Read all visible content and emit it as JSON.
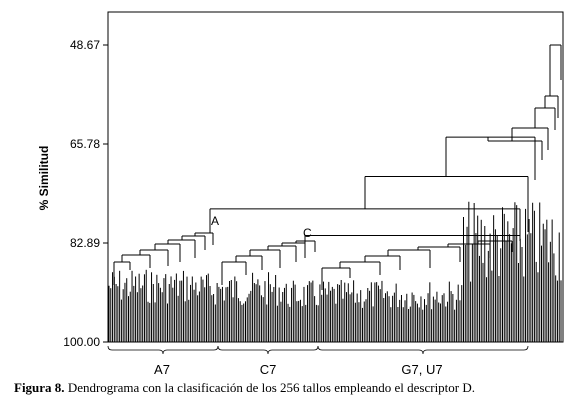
{
  "chart_data": {
    "type": "dendrogram",
    "ylabel": "% Similitud",
    "ylim": [
      45,
      100
    ],
    "yticks": [
      "48.67",
      "65.78",
      "82.89",
      "100.00"
    ],
    "ytick_values": [
      48.67,
      65.78,
      82.89,
      100.0
    ],
    "leaf_count": 256,
    "merges": [
      {
        "label": "A",
        "similarity": 77.0
      },
      {
        "label": "C",
        "similarity": 81.6
      },
      {
        "label": "",
        "similarity": 71.4
      },
      {
        "label": "",
        "similarity": 64.6
      },
      {
        "label": "",
        "similarity": 48.67
      }
    ],
    "clusters": [
      {
        "label": "A7"
      },
      {
        "label": "C7"
      },
      {
        "label": "G7, U7"
      }
    ]
  },
  "caption": {
    "prefix": "Figura 8.",
    "text": " Dendrograma con la clasificación de los 256 tallos empleando el descriptor D."
  }
}
